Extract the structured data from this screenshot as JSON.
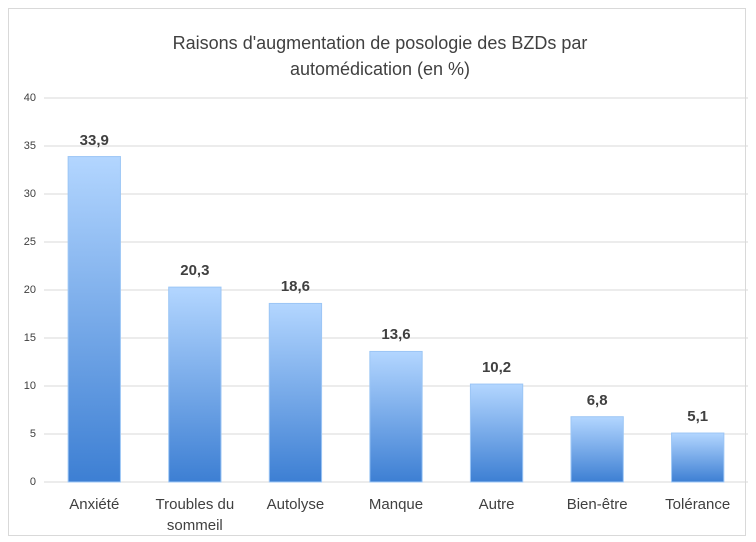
{
  "chart_data": {
    "type": "bar",
    "title": "Raisons d'augmentation de posologie des BZDs par automédication (en %)",
    "categories": [
      "Anxiété",
      "Troubles du sommeil",
      "Autolyse",
      "Manque",
      "Autre",
      "Bien-être",
      "Tolérance"
    ],
    "values": [
      33.9,
      20.3,
      18.6,
      13.6,
      10.2,
      6.8,
      5.1
    ],
    "value_labels": [
      "33,9",
      "20,3",
      "18,6",
      "13,6",
      "10,2",
      "6,8",
      "5,1"
    ],
    "color": "#4f8fdc",
    "ylim": [
      0,
      40
    ],
    "yticks": [
      0,
      5,
      10,
      15,
      20,
      25,
      30,
      35,
      40
    ],
    "grid": true
  }
}
